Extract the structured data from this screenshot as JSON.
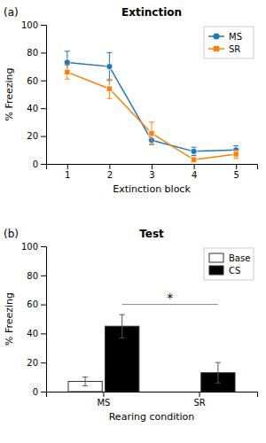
{
  "chart_data": [
    {
      "type": "line",
      "title": "Extinction",
      "x_label": "Extinction block",
      "y_label": "% Freezing",
      "x": [
        1,
        2,
        3,
        4,
        5
      ],
      "xlim": [
        0.5,
        5.5
      ],
      "xticks": [
        1,
        2,
        3,
        4,
        5
      ],
      "ylim": [
        0,
        100
      ],
      "yticks": [
        0,
        20,
        40,
        60,
        80,
        100
      ],
      "grid": false,
      "legend": "upper right",
      "annotations": [
        {
          "text": "(a)"
        }
      ],
      "series": [
        {
          "name": "MS",
          "marker": "circle",
          "values": [
            73,
            70,
            17,
            9,
            10
          ],
          "errors": [
            8,
            10,
            3,
            3,
            3
          ]
        },
        {
          "name": "SR",
          "marker": "square",
          "values": [
            66,
            54,
            22,
            3,
            7
          ],
          "errors": [
            5,
            7,
            8,
            2,
            3
          ]
        }
      ]
    },
    {
      "type": "bar",
      "title": "Test",
      "x_label": "Rearing condition",
      "y_label": "% Freezing",
      "categories": [
        "MS",
        "SR"
      ],
      "ylim": [
        0,
        100
      ],
      "yticks": [
        0,
        20,
        40,
        60,
        80,
        100
      ],
      "grid": false,
      "legend": "upper right",
      "annotations": [
        {
          "text": "(b)"
        },
        {
          "text": "*",
          "y": 60,
          "x": [
            "MS",
            "SR"
          ]
        }
      ],
      "series": [
        {
          "name": "Base",
          "color": "#ffffff",
          "values": [
            7,
            0
          ],
          "errors": [
            3,
            0
          ]
        },
        {
          "name": "CS",
          "color": "#000000",
          "values": [
            45,
            13
          ],
          "errors": [
            8,
            7
          ]
        }
      ]
    }
  ]
}
